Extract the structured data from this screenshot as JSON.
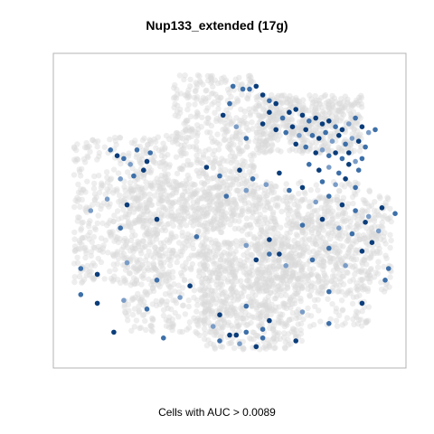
{
  "chart_data": {
    "type": "scatter",
    "title": "Nup133_extended (17g)",
    "xlabel": "Cells with AUC > 0.0089",
    "ylabel": "",
    "axes": "none",
    "grid": false,
    "legend": "none",
    "colors": {
      "background_cells": "#d9d9d9",
      "high_auc": "#0b3d7a",
      "mid_auc": "#3d6fa8",
      "low_auc": "#7a9cc6",
      "frame": "#b3b3b3"
    },
    "series": [
      {
        "name": "",
        "description_level": "cells above threshold",
        "x": [
          0.51,
          0.54,
          0.56,
          0.58,
          0.6,
          0.62,
          0.64,
          0.48,
          0.5,
          0.52,
          0.55,
          0.6,
          0.62,
          0.66,
          0.68,
          0.7,
          0.72,
          0.74,
          0.76,
          0.78,
          0.8,
          0.82,
          0.84,
          0.86,
          0.88,
          0.9,
          0.92,
          0.94,
          0.64,
          0.67,
          0.69,
          0.71,
          0.73,
          0.75,
          0.77,
          0.79,
          0.81,
          0.83,
          0.85,
          0.87,
          0.89,
          0.91,
          0.7,
          0.73,
          0.76,
          0.78,
          0.8,
          0.82,
          0.84,
          0.86,
          0.88,
          0.9,
          0.74,
          0.77,
          0.8,
          0.83,
          0.86,
          0.89,
          0.78,
          0.82,
          0.85,
          0.88,
          0.14,
          0.16,
          0.18,
          0.2,
          0.22,
          0.25,
          0.17,
          0.21,
          0.24,
          0.26,
          0.13,
          0.19,
          0.43,
          0.47,
          0.53,
          0.57,
          0.61,
          0.65,
          0.49,
          0.55,
          0.68,
          0.72,
          0.76,
          0.8,
          0.84,
          0.88,
          0.92,
          0.96,
          0.72,
          0.78,
          0.83,
          0.87,
          0.91,
          0.95,
          1.0,
          0.58,
          0.62,
          0.67,
          0.8,
          0.9,
          0.98,
          0.62,
          0.05,
          0.1,
          0.19,
          0.28,
          0.38,
          0.05,
          0.18,
          0.1,
          0.25,
          0.35,
          0.47,
          0.55,
          0.62,
          0.72,
          0.8,
          0.9,
          0.97,
          0.08,
          0.17,
          0.28,
          0.4,
          0.55,
          0.65,
          0.75,
          0.85,
          0.93,
          0.15,
          0.3,
          0.45,
          0.52,
          0.6,
          0.7,
          0.8,
          0.47,
          0.5,
          0.53,
          0.55,
          0.58,
          0.6
        ],
        "y": [
          0.93,
          0.92,
          0.92,
          0.93,
          0.9,
          0.88,
          0.87,
          0.83,
          0.87,
          0.79,
          0.75,
          0.8,
          0.84,
          0.82,
          0.84,
          0.85,
          0.83,
          0.81,
          0.82,
          0.8,
          0.81,
          0.79,
          0.78,
          0.8,
          0.82,
          0.79,
          0.77,
          0.78,
          0.78,
          0.77,
          0.79,
          0.76,
          0.78,
          0.76,
          0.75,
          0.77,
          0.74,
          0.76,
          0.73,
          0.75,
          0.74,
          0.72,
          0.73,
          0.72,
          0.7,
          0.71,
          0.69,
          0.7,
          0.68,
          0.7,
          0.67,
          0.68,
          0.66,
          0.64,
          0.65,
          0.63,
          0.66,
          0.64,
          0.6,
          0.59,
          0.61,
          0.58,
          0.71,
          0.69,
          0.68,
          0.66,
          0.71,
          0.67,
          0.61,
          0.62,
          0.64,
          0.7,
          0.54,
          0.52,
          0.65,
          0.62,
          0.64,
          0.61,
          0.59,
          0.63,
          0.55,
          0.57,
          0.57,
          0.58,
          0.53,
          0.55,
          0.52,
          0.5,
          0.48,
          0.51,
          0.45,
          0.47,
          0.44,
          0.42,
          0.46,
          0.43,
          0.49,
          0.33,
          0.35,
          0.31,
          0.37,
          0.36,
          0.3,
          0.4,
          0.3,
          0.28,
          0.32,
          0.26,
          0.24,
          0.21,
          0.19,
          0.18,
          0.16,
          0.2,
          0.14,
          0.17,
          0.12,
          0.15,
          0.22,
          0.18,
          0.26,
          0.5,
          0.44,
          0.47,
          0.41,
          0.38,
          0.35,
          0.33,
          0.31,
          0.39,
          0.08,
          0.06,
          0.1,
          0.07,
          0.09,
          0.05,
          0.11,
          0.05,
          0.07,
          0.04,
          0.08,
          0.03,
          0.06
        ],
        "level": [
          2,
          2,
          2,
          1,
          1,
          2,
          1,
          1,
          2,
          3,
          2,
          1,
          1,
          2,
          1,
          1,
          1,
          2,
          1,
          1,
          1,
          2,
          1,
          3,
          2,
          1,
          3,
          2,
          1,
          2,
          1,
          3,
          1,
          2,
          1,
          2,
          3,
          1,
          2,
          3,
          1,
          2,
          1,
          2,
          1,
          3,
          2,
          1,
          2,
          1,
          3,
          2,
          2,
          1,
          3,
          2,
          1,
          2,
          2,
          3,
          1,
          2,
          2,
          1,
          2,
          3,
          2,
          1,
          3,
          2,
          1,
          2,
          3,
          1,
          1,
          2,
          1,
          2,
          3,
          1,
          2,
          3,
          2,
          1,
          3,
          2,
          1,
          2,
          3,
          1,
          2,
          1,
          3,
          2,
          1,
          3,
          2,
          1,
          2,
          3,
          2,
          1,
          2,
          1,
          2,
          1,
          3,
          2,
          1,
          2,
          3,
          1,
          2,
          3,
          1,
          2,
          1,
          3,
          2,
          1,
          2,
          3,
          2,
          1,
          2,
          3,
          1,
          2,
          3,
          1,
          1,
          2,
          3,
          1,
          2,
          1,
          2,
          2,
          1,
          3,
          2,
          1,
          2
        ]
      }
    ],
    "background": {
      "name": "",
      "description_level": "all cells",
      "regions": [
        {
          "x": [
            0.03,
            0.33
          ],
          "y": [
            0.25,
            0.76
          ]
        },
        {
          "x": [
            0.18,
            0.48
          ],
          "y": [
            0.08,
            0.6
          ]
        },
        {
          "x": [
            0.33,
            0.58
          ],
          "y": [
            0.45,
            0.97
          ]
        },
        {
          "x": [
            0.46,
            0.93
          ],
          "y": [
            0.1,
            0.6
          ]
        },
        {
          "x": [
            0.58,
            0.99
          ],
          "y": [
            0.22,
            0.55
          ]
        },
        {
          "x": [
            0.4,
            0.72
          ],
          "y": [
            0.02,
            0.4
          ]
        },
        {
          "x": [
            0.58,
            0.9
          ],
          "y": [
            0.7,
            0.9
          ]
        }
      ]
    },
    "xlim": [
      0,
      1
    ],
    "ylim": [
      0,
      1
    ]
  }
}
